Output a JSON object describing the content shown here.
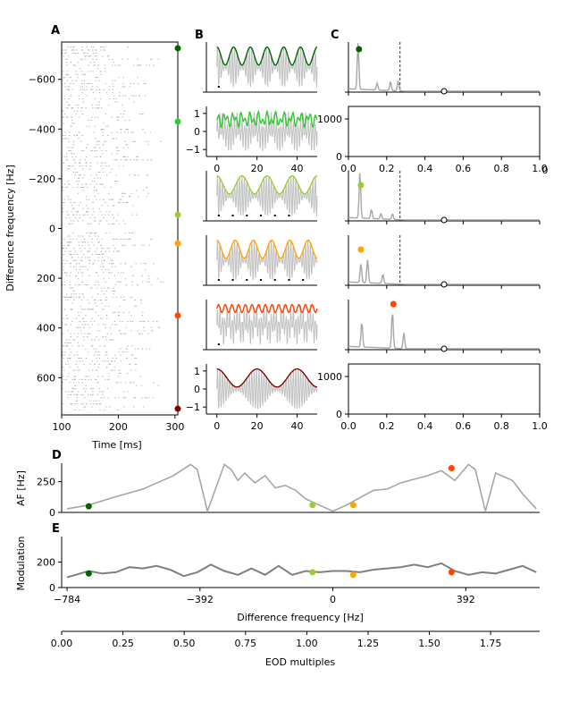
{
  "figure": {
    "panel_letters": [
      "A",
      "B",
      "C",
      "D",
      "E"
    ],
    "colors": {
      "gray": "#a6a6a6",
      "lightgray": "#c8c8c8",
      "darkgray": "#7f7f7f",
      "green_dark": "#006400",
      "green_mid": "#32c832",
      "green_yellow": "#9acd32",
      "orange": "#ffa500",
      "red_orange": "#ff4500",
      "dark_red": "#800000"
    }
  },
  "chart_data": [
    {
      "id": "A",
      "type": "scatter",
      "title": "",
      "xlabel": "Time [ms]",
      "ylabel": "Difference frequency [Hz]",
      "xlim": [
        100,
        305
      ],
      "ylim": [
        -750,
        750
      ],
      "y_inverted": true,
      "xticks": [
        100,
        200,
        300
      ],
      "yticks": [
        -600,
        -400,
        -200,
        0,
        200,
        400,
        600
      ],
      "marker_colors": [
        "#006400",
        "#32c832",
        "#9acd32",
        "#ffa500",
        "#ff4500",
        "#800000"
      ],
      "marker_y": [
        -725,
        -430,
        -55,
        60,
        350,
        725
      ]
    },
    {
      "id": "B",
      "type": "line",
      "subplots": 6,
      "series_colors": [
        "#006400",
        "#32c832",
        "#9acd32",
        "#ffa500",
        "#ff4500",
        "#800000"
      ],
      "beat_freqs_hz": [
        60,
        350,
        40,
        55,
        300,
        25
      ],
      "xlim": [
        -3,
        50
      ],
      "xticks": [
        0,
        20,
        40
      ],
      "yticks_labeled": [
        1,
        0,
        -1
      ],
      "labeled_rows": [
        1,
        5
      ]
    },
    {
      "id": "C",
      "type": "line",
      "subplots": 6,
      "xlim": [
        0,
        1.0
      ],
      "xticks": [
        0.0,
        0.2,
        0.4,
        0.6,
        0.8,
        1.0
      ],
      "yticks_labeled": [
        0,
        1000
      ],
      "labeled_rows": [
        1,
        5
      ],
      "dashed_line_x": 0.27,
      "peak_x": [
        0.055,
        0.07,
        0.065,
        0.065,
        0.235,
        0.5
      ],
      "peak_colors": [
        "#006400",
        "#9acd32",
        "#9acd32",
        "#ffa500",
        "#ff4500",
        "#000000"
      ]
    },
    {
      "id": "D",
      "type": "line",
      "xlabel": "",
      "ylabel": "AF [Hz]",
      "xlim": [
        -800,
        610
      ],
      "ylim": [
        0,
        400
      ],
      "yticks": [
        0,
        250
      ],
      "x": [
        -784,
        -720,
        -650,
        -560,
        -470,
        -420,
        -400,
        -370,
        -320,
        -300,
        -280,
        -260,
        -230,
        -200,
        -170,
        -140,
        -110,
        -80,
        -40,
        0,
        40,
        80,
        120,
        160,
        200,
        240,
        280,
        320,
        360,
        400,
        420,
        450,
        480,
        530,
        560,
        600
      ],
      "y": [
        30,
        60,
        120,
        190,
        300,
        390,
        350,
        10,
        390,
        350,
        260,
        320,
        240,
        300,
        200,
        220,
        180,
        110,
        60,
        10,
        60,
        120,
        180,
        190,
        240,
        270,
        300,
        340,
        260,
        390,
        350,
        10,
        320,
        260,
        150,
        30
      ],
      "points": [
        {
          "x": -720,
          "y": 50,
          "color": "#006400"
        },
        {
          "x": -60,
          "y": 60,
          "color": "#9acd32"
        },
        {
          "x": 60,
          "y": 60,
          "color": "#ffa500"
        },
        {
          "x": 350,
          "y": 360,
          "color": "#ff4500"
        }
      ]
    },
    {
      "id": "E",
      "type": "line",
      "ylabel": "Modulation",
      "xlabel": "Difference frequency [Hz]",
      "xlim": [
        -800,
        610
      ],
      "ylim": [
        0,
        400
      ],
      "yticks": [
        0,
        200
      ],
      "xticks": [
        -784,
        -392,
        0,
        392
      ],
      "x": [
        -784,
        -720,
        -680,
        -640,
        -600,
        -560,
        -520,
        -480,
        -440,
        -400,
        -360,
        -320,
        -280,
        -240,
        -200,
        -160,
        -120,
        -80,
        -40,
        0,
        40,
        80,
        120,
        160,
        200,
        240,
        280,
        320,
        360,
        400,
        440,
        480,
        520,
        560,
        600
      ],
      "y": [
        80,
        130,
        110,
        120,
        160,
        150,
        170,
        140,
        90,
        120,
        180,
        130,
        100,
        150,
        100,
        170,
        100,
        130,
        120,
        130,
        130,
        120,
        140,
        150,
        160,
        180,
        160,
        190,
        130,
        100,
        120,
        110,
        140,
        170,
        120
      ],
      "points": [
        {
          "x": -720,
          "y": 110,
          "color": "#006400"
        },
        {
          "x": -60,
          "y": 120,
          "color": "#9acd32"
        },
        {
          "x": 60,
          "y": 100,
          "color": "#ffa500"
        },
        {
          "x": 350,
          "y": 120,
          "color": "#ff4500"
        }
      ]
    },
    {
      "id": "F",
      "type": "axis",
      "xlabel": "EOD multiples",
      "xlim": [
        0.0,
        1.95
      ],
      "xticks": [
        "0.00",
        "0.25",
        "0.50",
        "0.75",
        "1.00",
        "1.25",
        "1.50",
        "1.75"
      ]
    }
  ]
}
